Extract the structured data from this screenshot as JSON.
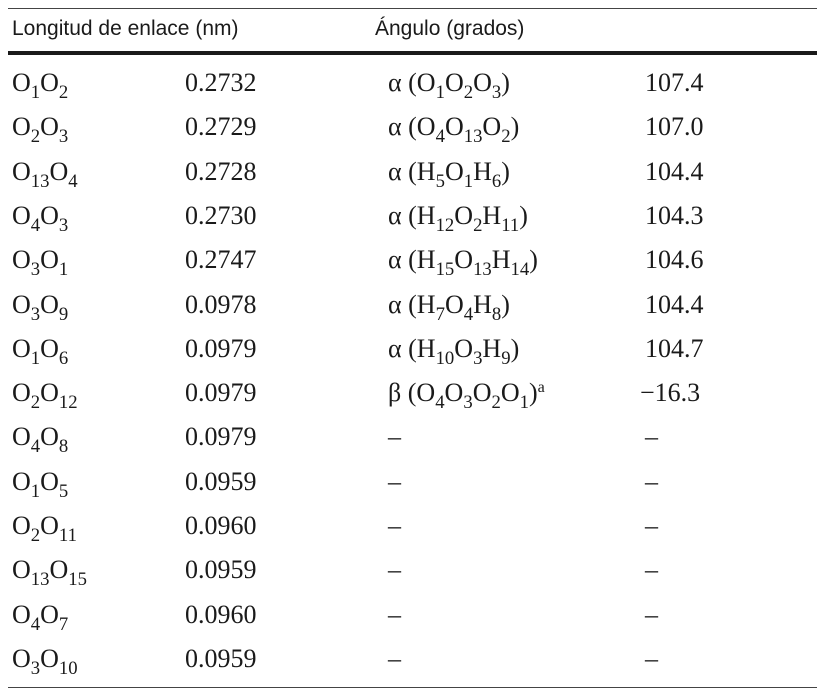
{
  "headers": {
    "bond_length": "Longitud de enlace (nm)",
    "angle": "Ángulo (grados)"
  },
  "rows": [
    {
      "bond": [
        [
          "O",
          "1"
        ],
        [
          "O",
          "2"
        ]
      ],
      "length": "0.2732",
      "angle_sym": "α",
      "angle_atoms": [
        [
          "O",
          "1"
        ],
        [
          "O",
          "2"
        ],
        [
          "O",
          "3"
        ]
      ],
      "angle_sup": "",
      "angle_val": "107.4"
    },
    {
      "bond": [
        [
          "O",
          "2"
        ],
        [
          "O",
          "3"
        ]
      ],
      "length": "0.2729",
      "angle_sym": "α",
      "angle_atoms": [
        [
          "O",
          "4"
        ],
        [
          "O",
          "13"
        ],
        [
          "O",
          "2"
        ]
      ],
      "angle_sup": "",
      "angle_val": "107.0"
    },
    {
      "bond": [
        [
          "O",
          "13"
        ],
        [
          "O",
          "4"
        ]
      ],
      "length": "0.2728",
      "angle_sym": "α",
      "angle_atoms": [
        [
          "H",
          "5"
        ],
        [
          "O",
          "1"
        ],
        [
          "H",
          "6"
        ]
      ],
      "angle_sup": "",
      "angle_val": "104.4"
    },
    {
      "bond": [
        [
          "O",
          "4"
        ],
        [
          "O",
          "3"
        ]
      ],
      "length": "0.2730",
      "angle_sym": "α",
      "angle_atoms": [
        [
          "H",
          "12"
        ],
        [
          "O",
          "2"
        ],
        [
          "H",
          "11"
        ]
      ],
      "angle_sup": "",
      "angle_val": "104.3"
    },
    {
      "bond": [
        [
          "O",
          "3"
        ],
        [
          "O",
          "1"
        ]
      ],
      "length": "0.2747",
      "angle_sym": "α",
      "angle_atoms": [
        [
          "H",
          "15"
        ],
        [
          "O",
          "13"
        ],
        [
          "H",
          "14"
        ]
      ],
      "angle_sup": "",
      "angle_val": "104.6"
    },
    {
      "bond": [
        [
          "O",
          "3"
        ],
        [
          "O",
          "9"
        ]
      ],
      "length": "0.0978",
      "angle_sym": "α",
      "angle_atoms": [
        [
          "H",
          "7"
        ],
        [
          "O",
          "4"
        ],
        [
          "H",
          "8"
        ]
      ],
      "angle_sup": "",
      "angle_val": "104.4"
    },
    {
      "bond": [
        [
          "O",
          "1"
        ],
        [
          "O",
          "6"
        ]
      ],
      "length": "0.0979",
      "angle_sym": "α",
      "angle_atoms": [
        [
          "H",
          "10"
        ],
        [
          "O",
          "3"
        ],
        [
          "H",
          "9"
        ]
      ],
      "angle_sup": "",
      "angle_val": "104.7"
    },
    {
      "bond": [
        [
          "O",
          "2"
        ],
        [
          "O",
          "12"
        ]
      ],
      "length": "0.0979",
      "angle_sym": "β",
      "angle_atoms": [
        [
          "O",
          "4"
        ],
        [
          "O",
          "3"
        ],
        [
          "O",
          "2"
        ],
        [
          "O",
          "1"
        ]
      ],
      "angle_sup": "a",
      "angle_val": "−16.3"
    },
    {
      "bond": [
        [
          "O",
          "4"
        ],
        [
          "O",
          "8"
        ]
      ],
      "length": "0.0979",
      "angle_sym": "",
      "angle_atoms": [],
      "angle_sup": "",
      "angle_text": "–",
      "angle_val": "–"
    },
    {
      "bond": [
        [
          "O",
          "1"
        ],
        [
          "O",
          "5"
        ]
      ],
      "length": "0.0959",
      "angle_sym": "",
      "angle_atoms": [],
      "angle_sup": "",
      "angle_text": "–",
      "angle_val": "–"
    },
    {
      "bond": [
        [
          "O",
          "2"
        ],
        [
          "O",
          "11"
        ]
      ],
      "length": "0.0960",
      "angle_sym": "",
      "angle_atoms": [],
      "angle_sup": "",
      "angle_text": "–",
      "angle_val": "–"
    },
    {
      "bond": [
        [
          "O",
          "13"
        ],
        [
          "O",
          "15"
        ]
      ],
      "length": "0.0959",
      "angle_sym": "",
      "angle_atoms": [],
      "angle_sup": "",
      "angle_text": "–",
      "angle_val": "–"
    },
    {
      "bond": [
        [
          "O",
          "4"
        ],
        [
          "O",
          "7"
        ]
      ],
      "length": "0.0960",
      "angle_sym": "",
      "angle_atoms": [],
      "angle_sup": "",
      "angle_text": "–",
      "angle_val": "–"
    },
    {
      "bond": [
        [
          "O",
          "3"
        ],
        [
          "O",
          "10"
        ]
      ],
      "length": "0.0959",
      "angle_sym": "",
      "angle_atoms": [],
      "angle_sup": "",
      "angle_text": "–",
      "angle_val": "–"
    }
  ]
}
